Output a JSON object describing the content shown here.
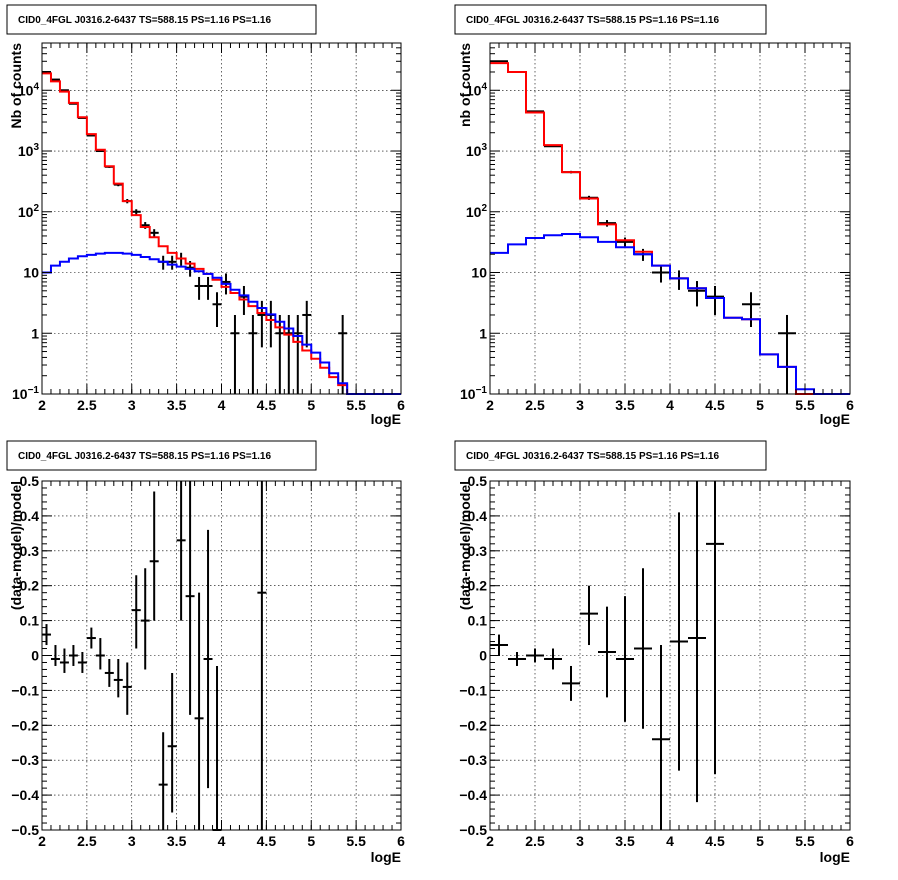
{
  "chart_data": [
    {
      "type": "histogram-log",
      "title": "CID0_4FGL J0316.2-6437 TS=588.15 PS=1.16 PS=1.16",
      "xlabel": "logE",
      "ylabel": "Nb of counts",
      "xlim": [
        2,
        6
      ],
      "ylim": [
        0.1,
        60000
      ],
      "xticks": [
        "2",
        "2.5",
        "3",
        "3.5",
        "4",
        "4.5",
        "5",
        "5.5",
        "6"
      ],
      "yticks": [
        {
          "v": 0.1,
          "base": "10",
          "exp": "−1"
        },
        {
          "v": 1,
          "label": "1"
        },
        {
          "v": 10,
          "label": "10"
        },
        {
          "v": 100,
          "base": "10",
          "exp": "2"
        },
        {
          "v": 1000,
          "base": "10",
          "exp": "3"
        },
        {
          "v": 10000,
          "base": "10",
          "exp": "4"
        }
      ],
      "grid": true,
      "bin_width": 0.1,
      "series": [
        {
          "color": "#000000",
          "style": "errorbars",
          "x": [
            2.05,
            2.15,
            2.25,
            2.35,
            2.45,
            2.55,
            2.65,
            2.75,
            2.85,
            2.95,
            3.05,
            3.15,
            3.25,
            3.35,
            3.45,
            3.55,
            3.65,
            3.75,
            3.85,
            3.95,
            4.05,
            4.15,
            4.25,
            4.35,
            4.45,
            4.55,
            4.65,
            4.75,
            4.85,
            4.95,
            5.35
          ],
          "y": [
            20000,
            15000,
            10000,
            6000,
            3500,
            1800,
            1000,
            550,
            280,
            150,
            100,
            60,
            45,
            15,
            15,
            17,
            12,
            6,
            6,
            3,
            7,
            1,
            4,
            1,
            2,
            2,
            1,
            1,
            1,
            2,
            1
          ]
        },
        {
          "color": "#ff0000",
          "style": "step",
          "x": [
            2.0,
            2.1,
            2.2,
            2.3,
            2.4,
            2.5,
            2.6,
            2.7,
            2.8,
            2.9,
            3.0,
            3.1,
            3.2,
            3.3,
            3.4,
            3.5,
            3.6,
            3.7,
            3.8,
            3.9,
            4.0,
            4.1,
            4.2,
            4.3,
            4.4,
            4.5,
            4.6,
            4.7,
            4.8,
            4.9,
            5.0,
            5.1,
            5.2,
            5.3,
            5.4,
            5.5,
            5.6,
            5.7,
            5.8,
            5.9
          ],
          "y": [
            19000,
            14000,
            9500,
            6200,
            3600,
            1900,
            1050,
            560,
            290,
            150,
            88,
            56,
            38,
            27,
            21,
            17,
            14,
            11.5,
            9.5,
            7.6,
            5.8,
            4.6,
            3.6,
            2.8,
            2.15,
            1.65,
            1.25,
            0.95,
            0.72,
            0.52,
            0.38,
            0.27,
            0.19,
            0.14,
            0.1,
            0.1,
            0.1,
            0.1,
            0.1,
            0.1
          ]
        },
        {
          "color": "#0000ff",
          "style": "step",
          "x": [
            2.0,
            2.1,
            2.2,
            2.3,
            2.4,
            2.5,
            2.6,
            2.7,
            2.8,
            2.9,
            3.0,
            3.1,
            3.2,
            3.3,
            3.4,
            3.5,
            3.6,
            3.7,
            3.8,
            3.9,
            4.0,
            4.1,
            4.2,
            4.3,
            4.4,
            4.5,
            4.6,
            4.7,
            4.8,
            4.9,
            5.0,
            5.1,
            5.2,
            5.3,
            5.4,
            5.5,
            5.6,
            5.7,
            5.8,
            5.9
          ],
          "y": [
            10,
            13,
            15,
            17,
            18.5,
            19.5,
            20.5,
            21,
            21,
            20.5,
            19.5,
            18,
            16.5,
            15,
            13.5,
            12.5,
            11.5,
            10.5,
            9.5,
            8.2,
            6.5,
            5.2,
            4.2,
            3.3,
            2.6,
            2.05,
            1.55,
            1.2,
            0.9,
            0.65,
            0.48,
            0.33,
            0.22,
            0.15,
            0.1,
            0.1,
            0.1,
            0.1,
            0.1,
            0.1
          ]
        }
      ]
    },
    {
      "type": "histogram-log",
      "title": "CID0_4FGL J0316.2-6437 TS=588.15 PS=1.16 PS=1.16",
      "xlabel": "logE",
      "ylabel": "nb of counts",
      "xlim": [
        2,
        6
      ],
      "ylim": [
        0.1,
        60000
      ],
      "xticks": [
        "2",
        "2.5",
        "3",
        "3.5",
        "4",
        "4.5",
        "5",
        "5.5",
        "6"
      ],
      "yticks": [
        {
          "v": 0.1,
          "base": "10",
          "exp": "−1"
        },
        {
          "v": 1,
          "label": "1"
        },
        {
          "v": 10,
          "label": "10"
        },
        {
          "v": 100,
          "base": "10",
          "exp": "2"
        },
        {
          "v": 1000,
          "base": "10",
          "exp": "3"
        },
        {
          "v": 10000,
          "base": "10",
          "exp": "4"
        }
      ],
      "grid": true,
      "bin_width": 0.2,
      "series": [
        {
          "color": "#000000",
          "style": "errorbars",
          "x": [
            2.1,
            2.3,
            2.5,
            2.7,
            2.9,
            3.1,
            3.3,
            3.5,
            3.7,
            3.9,
            4.1,
            4.3,
            4.5,
            4.9,
            5.3
          ],
          "y": [
            30000,
            20000,
            4500,
            1200,
            450,
            170,
            65,
            32,
            20,
            10,
            8,
            5,
            4,
            3,
            1
          ]
        },
        {
          "color": "#ff0000",
          "style": "step",
          "x": [
            2.0,
            2.2,
            2.4,
            2.6,
            2.8,
            3.0,
            3.2,
            3.4,
            3.6,
            3.8,
            4.0,
            4.2,
            4.4,
            4.6,
            4.8,
            5.0,
            5.2,
            5.4,
            5.6,
            5.8
          ],
          "y": [
            28000,
            20000,
            4300,
            1250,
            450,
            165,
            62,
            34,
            22,
            13,
            8,
            5.5,
            3.8,
            1.8,
            1.7,
            0.45,
            0.28,
            0.1,
            0.1,
            0.1
          ]
        },
        {
          "color": "#0000ff",
          "style": "step",
          "x": [
            2.0,
            2.2,
            2.4,
            2.6,
            2.8,
            3.0,
            3.2,
            3.4,
            3.6,
            3.8,
            4.0,
            4.2,
            4.4,
            4.6,
            4.8,
            5.0,
            5.2,
            5.4,
            5.6,
            5.8
          ],
          "y": [
            21,
            29,
            37,
            41,
            43,
            38,
            32,
            26,
            20,
            13,
            8,
            5.5,
            3.8,
            1.8,
            1.7,
            0.45,
            0.28,
            0.12,
            0.1,
            0.1
          ]
        }
      ]
    },
    {
      "type": "residuals",
      "title": "CID0_4FGL J0316.2-6437 TS=588.15 PS=1.16 PS=1.16",
      "xlabel": "logE",
      "ylabel": "(data-model)/model",
      "xlim": [
        2,
        6
      ],
      "ylim": [
        -0.5,
        0.5
      ],
      "xticks": [
        "2",
        "2.5",
        "3",
        "3.5",
        "4",
        "4.5",
        "5",
        "5.5",
        "6"
      ],
      "yticks": [
        "−0.5",
        "−0.4",
        "−0.3",
        "−0.2",
        "−0.1",
        "0",
        "0.1",
        "0.2",
        "0.3",
        "0.4",
        "0.5"
      ],
      "grid": true,
      "xerr": 0.05,
      "points": [
        {
          "x": 2.05,
          "y": 0.06,
          "lo": 0.03,
          "hi": 0.09
        },
        {
          "x": 2.15,
          "y": -0.01,
          "lo": -0.03,
          "hi": 0.03
        },
        {
          "x": 2.25,
          "y": -0.02,
          "lo": -0.05,
          "hi": 0.02
        },
        {
          "x": 2.35,
          "y": 0.0,
          "lo": -0.03,
          "hi": 0.03
        },
        {
          "x": 2.45,
          "y": -0.02,
          "lo": -0.05,
          "hi": 0.01
        },
        {
          "x": 2.55,
          "y": 0.05,
          "lo": 0.02,
          "hi": 0.08
        },
        {
          "x": 2.65,
          "y": 0.0,
          "lo": -0.04,
          "hi": 0.05
        },
        {
          "x": 2.75,
          "y": -0.05,
          "lo": -0.09,
          "hi": -0.01
        },
        {
          "x": 2.85,
          "y": -0.07,
          "lo": -0.12,
          "hi": -0.01
        },
        {
          "x": 2.95,
          "y": -0.09,
          "lo": -0.17,
          "hi": -0.02
        },
        {
          "x": 3.05,
          "y": 0.13,
          "lo": 0.02,
          "hi": 0.23
        },
        {
          "x": 3.15,
          "y": 0.1,
          "lo": -0.04,
          "hi": 0.25
        },
        {
          "x": 3.25,
          "y": 0.27,
          "lo": 0.1,
          "hi": 0.47
        },
        {
          "x": 3.35,
          "y": -0.37,
          "lo": -0.5,
          "hi": -0.22
        },
        {
          "x": 3.45,
          "y": -0.26,
          "lo": -0.45,
          "hi": -0.05
        },
        {
          "x": 3.55,
          "y": 0.33,
          "lo": 0.1,
          "hi": 0.5
        },
        {
          "x": 3.65,
          "y": 0.17,
          "lo": -0.17,
          "hi": 0.5
        },
        {
          "x": 3.75,
          "y": -0.18,
          "lo": -0.5,
          "hi": 0.18
        },
        {
          "x": 3.85,
          "y": -0.01,
          "lo": -0.38,
          "hi": 0.36
        },
        {
          "x": 3.95,
          "y": -0.5,
          "lo": -0.5,
          "hi": -0.03
        },
        {
          "x": 4.45,
          "y": 0.18,
          "lo": -0.5,
          "hi": 0.5
        }
      ]
    },
    {
      "type": "residuals",
      "title": "CID0_4FGL J0316.2-6437 TS=588.15 PS=1.16 PS=1.16",
      "xlabel": "logE",
      "ylabel": "(data-model)/model",
      "xlim": [
        2,
        6
      ],
      "ylim": [
        -0.5,
        0.5
      ],
      "xticks": [
        "2",
        "2.5",
        "3",
        "3.5",
        "4",
        "4.5",
        "5",
        "5.5",
        "6"
      ],
      "yticks": [
        "−0.5",
        "−0.4",
        "−0.3",
        "−0.2",
        "−0.1",
        "0",
        "0.1",
        "0.2",
        "0.3",
        "0.4",
        "0.5"
      ],
      "grid": true,
      "xerr": 0.1,
      "points": [
        {
          "x": 2.1,
          "y": 0.03,
          "lo": 0.0,
          "hi": 0.06
        },
        {
          "x": 2.3,
          "y": -0.01,
          "lo": -0.03,
          "hi": 0.01
        },
        {
          "x": 2.5,
          "y": 0.0,
          "lo": -0.02,
          "hi": 0.02
        },
        {
          "x": 2.7,
          "y": -0.01,
          "lo": -0.04,
          "hi": 0.02
        },
        {
          "x": 2.9,
          "y": -0.08,
          "lo": -0.13,
          "hi": -0.03
        },
        {
          "x": 3.1,
          "y": 0.12,
          "lo": 0.03,
          "hi": 0.2
        },
        {
          "x": 3.3,
          "y": 0.01,
          "lo": -0.12,
          "hi": 0.14
        },
        {
          "x": 3.5,
          "y": -0.01,
          "lo": -0.19,
          "hi": 0.17
        },
        {
          "x": 3.7,
          "y": 0.02,
          "lo": -0.21,
          "hi": 0.25
        },
        {
          "x": 3.9,
          "y": -0.24,
          "lo": -0.5,
          "hi": 0.03
        },
        {
          "x": 4.1,
          "y": 0.04,
          "lo": -0.33,
          "hi": 0.41
        },
        {
          "x": 4.3,
          "y": 0.05,
          "lo": -0.42,
          "hi": 0.5
        },
        {
          "x": 4.5,
          "y": 0.32,
          "lo": -0.34,
          "hi": 0.5
        }
      ]
    }
  ]
}
